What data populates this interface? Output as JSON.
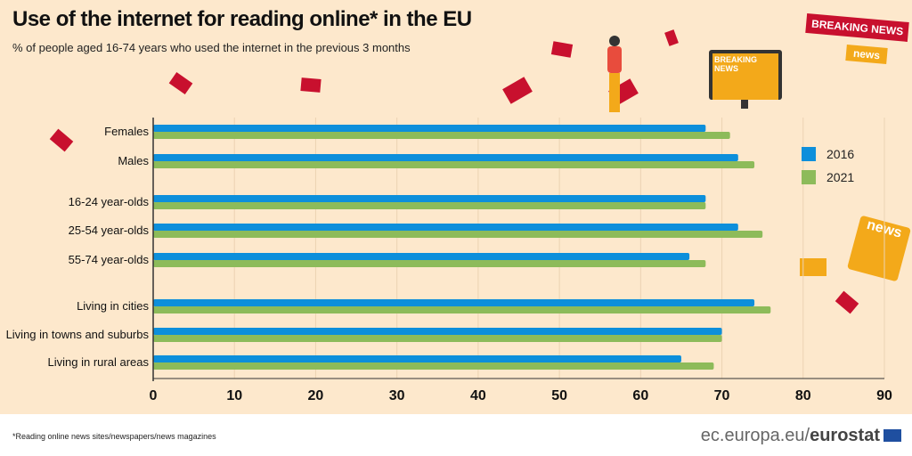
{
  "title": "Use of the internet for reading online* in the EU",
  "subtitle": "% of people aged 16-74 years who used the internet in the previous 3 months",
  "footnote": "*Reading online news sites/newspapers/news magazines",
  "brand": {
    "domain": "ec.europa.eu/",
    "name": "eurostat"
  },
  "decor": {
    "breaking_news": "BREAKING NEWS",
    "news_small": "news",
    "news_large": "news"
  },
  "chart_data": {
    "type": "bar",
    "orientation": "horizontal",
    "categories": [
      "Females",
      "Males",
      "16-24 year-olds",
      "25-54 year-olds",
      "55-74 year-olds",
      "Living in cities",
      "Living in towns and suburbs",
      "Living in rural areas"
    ],
    "series": [
      {
        "name": "2016",
        "color": "#0d8fdb",
        "values": [
          68,
          72,
          68,
          72,
          66,
          74,
          70,
          65
        ]
      },
      {
        "name": "2021",
        "color": "#8dbb5a",
        "values": [
          71,
          74,
          68,
          75,
          68,
          76,
          70,
          69
        ]
      }
    ],
    "xlim": [
      0,
      90
    ],
    "xticks": [
      "0",
      "10",
      "20",
      "30",
      "40",
      "50",
      "60",
      "70",
      "80",
      "90"
    ],
    "grid": true,
    "legend": "right"
  }
}
